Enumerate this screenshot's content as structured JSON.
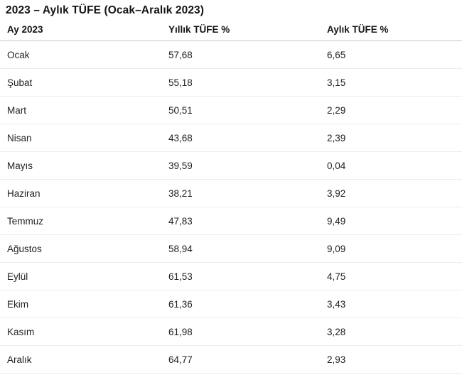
{
  "title": "2023 – Aylık TÜFE (Ocak–Aralık 2023)",
  "colors": {
    "text": "#1b1b1b",
    "header_divider": "#cbcbcb",
    "row_divider": "#ececec",
    "background": "#ffffff"
  },
  "table": {
    "columns": [
      "Ay 2023",
      "Yıllık TÜFE %",
      "Aylık TÜFE %"
    ],
    "rows": [
      {
        "month": "Ocak",
        "yearly": "57,68",
        "monthly": "6,65"
      },
      {
        "month": "Şubat",
        "yearly": "55,18",
        "monthly": "3,15"
      },
      {
        "month": "Mart",
        "yearly": "50,51",
        "monthly": "2,29"
      },
      {
        "month": "Nisan",
        "yearly": "43,68",
        "monthly": "2,39"
      },
      {
        "month": "Mayıs",
        "yearly": "39,59",
        "monthly": "0,04"
      },
      {
        "month": "Haziran",
        "yearly": "38,21",
        "monthly": "3,92"
      },
      {
        "month": "Temmuz",
        "yearly": "47,83",
        "monthly": "9,49"
      },
      {
        "month": "Ağustos",
        "yearly": "58,94",
        "monthly": "9,09"
      },
      {
        "month": "Eylül",
        "yearly": "61,53",
        "monthly": "4,75"
      },
      {
        "month": "Ekim",
        "yearly": "61,36",
        "monthly": "3,43"
      },
      {
        "month": "Kasım",
        "yearly": "61,98",
        "monthly": "3,28"
      },
      {
        "month": "Aralık",
        "yearly": "64,77",
        "monthly": "2,93"
      }
    ]
  },
  "chart_data": {
    "type": "table",
    "title": "2023 – Aylık TÜFE (Ocak–Aralık 2023)",
    "categories": [
      "Ocak",
      "Şubat",
      "Mart",
      "Nisan",
      "Mayıs",
      "Haziran",
      "Temmuz",
      "Ağustos",
      "Eylül",
      "Ekim",
      "Kasım",
      "Aralık"
    ],
    "series": [
      {
        "name": "Yıllık TÜFE %",
        "values": [
          57.68,
          55.18,
          50.51,
          43.68,
          39.59,
          38.21,
          47.83,
          58.94,
          61.53,
          61.36,
          61.98,
          64.77
        ]
      },
      {
        "name": "Aylık TÜFE %",
        "values": [
          6.65,
          3.15,
          2.29,
          2.39,
          0.04,
          3.92,
          9.49,
          9.09,
          4.75,
          3.43,
          3.28,
          2.93
        ]
      }
    ]
  }
}
